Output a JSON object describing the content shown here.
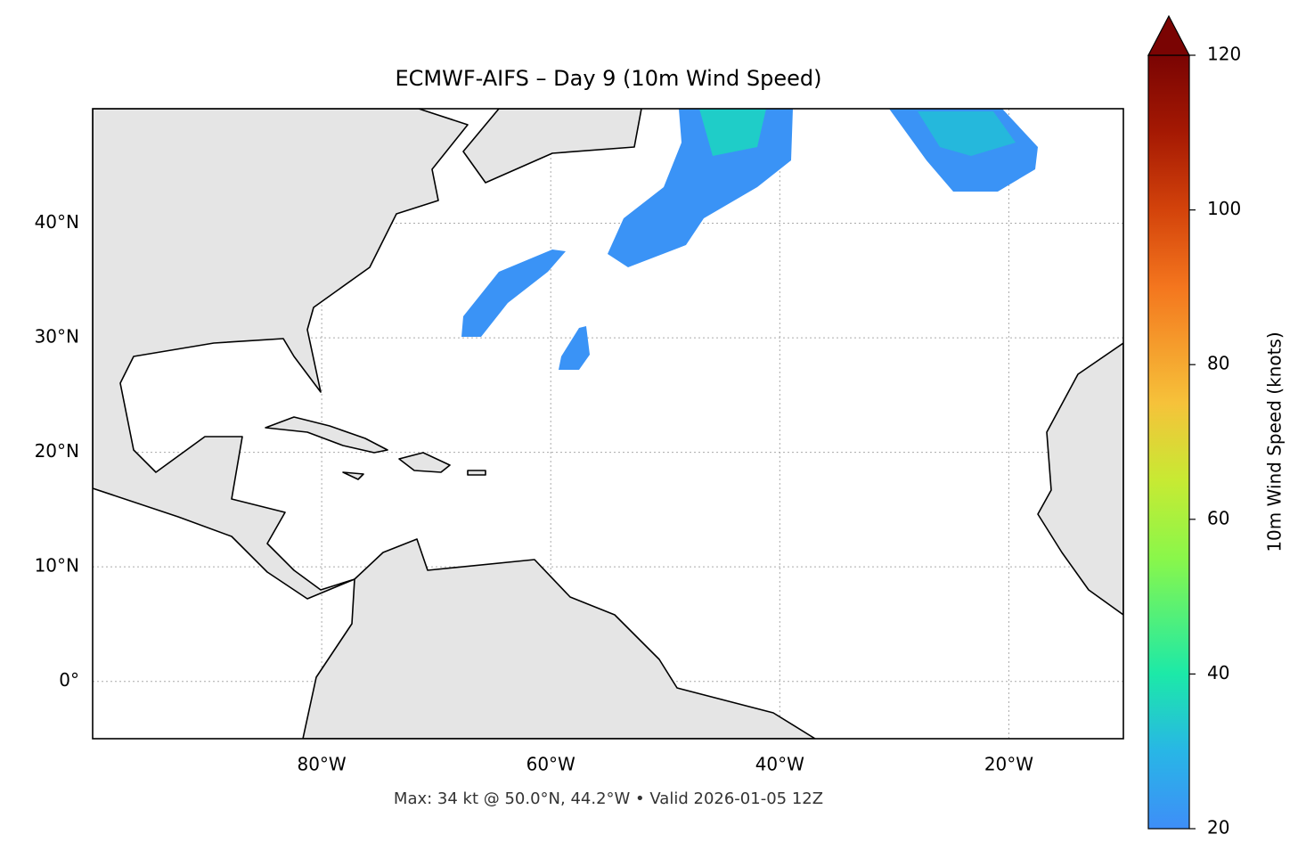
{
  "map": {
    "title": "ECMWF-AIFS – Day 9 (10m Wind Speed)",
    "lon_range": [
      -100,
      -10
    ],
    "lat_range": [
      -5,
      50
    ],
    "lon_ticks": [
      {
        "value": -80,
        "label": "80°W"
      },
      {
        "value": -60,
        "label": "60°W"
      },
      {
        "value": -40,
        "label": "40°W"
      },
      {
        "value": -20,
        "label": "20°W"
      }
    ],
    "lat_ticks": [
      {
        "value": 0,
        "label": "0°"
      },
      {
        "value": 10,
        "label": "10°N"
      },
      {
        "value": 20,
        "label": "20°N"
      },
      {
        "value": 30,
        "label": "30°N"
      },
      {
        "value": 40,
        "label": "40°N"
      }
    ],
    "colorbar": {
      "label": "10m Wind Speed (knots)",
      "range": [
        20,
        120
      ],
      "ticks": [
        20,
        40,
        60,
        80,
        100,
        120
      ]
    },
    "footer": "Max: 34 kt @ 50.0°N, 44.2°W • Valid 2026-01-05 12Z"
  }
}
